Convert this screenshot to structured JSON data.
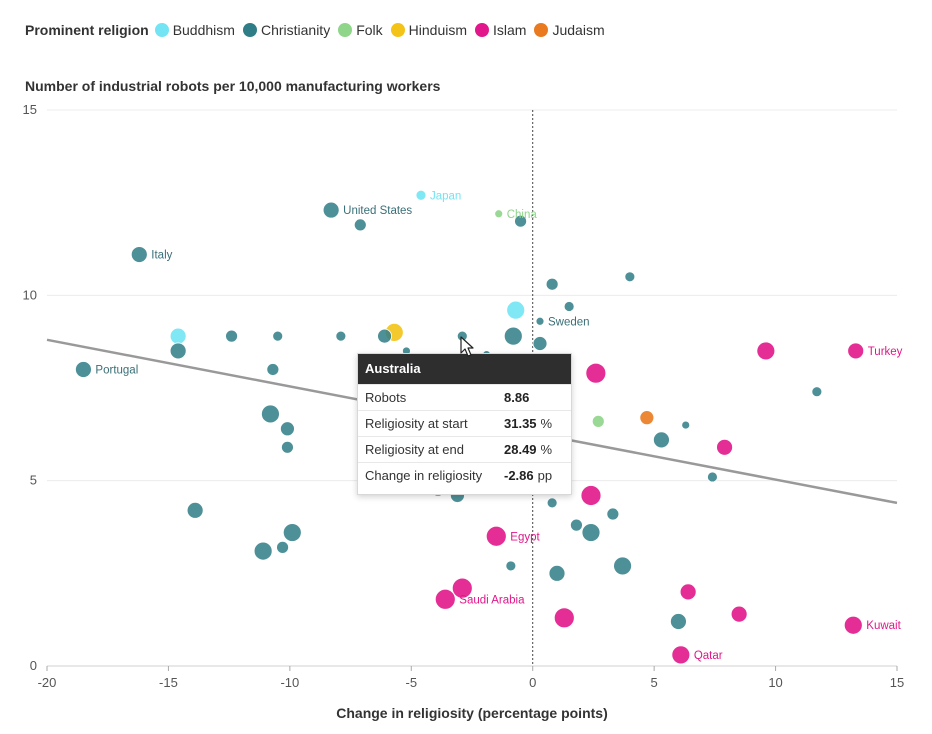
{
  "legend": {
    "title": "Prominent religion",
    "items": [
      {
        "label": "Buddhism",
        "color": "#72e4f4"
      },
      {
        "label": "Christianity",
        "color": "#2f7d86"
      },
      {
        "label": "Folk",
        "color": "#8fd58a"
      },
      {
        "label": "Hinduism",
        "color": "#f3c317"
      },
      {
        "label": "Islam",
        "color": "#e1178b"
      },
      {
        "label": "Judaism",
        "color": "#ea7a1f"
      }
    ]
  },
  "tooltip": {
    "title": "Australia",
    "rows": [
      {
        "label": "Robots",
        "value": "8.86",
        "unit": ""
      },
      {
        "label": "Religiosity at start",
        "value": "31.35",
        "unit": "%"
      },
      {
        "label": "Religiosity at end",
        "value": "28.49",
        "unit": "%"
      },
      {
        "label": "Change in religiosity",
        "value": "-2.86",
        "unit": "pp"
      }
    ]
  },
  "chart_data": {
    "type": "scatter",
    "title": "Number of industrial robots per 10,000 manufacturing workers",
    "xlabel": "Change in religiosity (percentage points)",
    "ylabel": "",
    "xlim": [
      -20,
      15
    ],
    "ylim": [
      0,
      15
    ],
    "xticks": [
      -20,
      -15,
      -10,
      -5,
      0,
      5,
      10,
      15
    ],
    "yticks": [
      0,
      5,
      10,
      15
    ],
    "grid": "horizontal",
    "zero_line": "dashed vertical at x=0",
    "trend_line": {
      "x": [
        -20,
        15
      ],
      "y": [
        8.8,
        4.4
      ]
    },
    "points": [
      {
        "x": -4.6,
        "y": 12.7,
        "r": 5,
        "religion": "Buddhism",
        "label": "Japan"
      },
      {
        "x": -0.7,
        "y": 9.6,
        "r": 9,
        "religion": "Buddhism"
      },
      {
        "x": -14.6,
        "y": 8.9,
        "r": 8,
        "religion": "Buddhism"
      },
      {
        "x": -1.4,
        "y": 12.2,
        "r": 4,
        "religion": "Folk",
        "label": "China"
      },
      {
        "x": 2.7,
        "y": 6.6,
        "r": 6,
        "religion": "Folk"
      },
      {
        "x": -5.7,
        "y": 9.0,
        "r": 9,
        "religion": "Hinduism"
      },
      {
        "x": 4.7,
        "y": 6.7,
        "r": 7,
        "religion": "Judaism"
      },
      {
        "x": -8.3,
        "y": 12.3,
        "r": 8,
        "religion": "Christianity",
        "label": "United States"
      },
      {
        "x": -7.1,
        "y": 11.9,
        "r": 6,
        "religion": "Christianity"
      },
      {
        "x": -0.5,
        "y": 12.0,
        "r": 6,
        "religion": "Christianity"
      },
      {
        "x": -16.2,
        "y": 11.1,
        "r": 8,
        "religion": "Christianity",
        "label": "Italy"
      },
      {
        "x": 0.8,
        "y": 10.3,
        "r": 6,
        "religion": "Christianity"
      },
      {
        "x": 4.0,
        "y": 10.5,
        "r": 5,
        "religion": "Christianity"
      },
      {
        "x": 1.5,
        "y": 9.7,
        "r": 5,
        "religion": "Christianity"
      },
      {
        "x": 0.3,
        "y": 9.3,
        "r": 4,
        "religion": "Christianity",
        "label": "Sweden"
      },
      {
        "x": -12.4,
        "y": 8.9,
        "r": 6,
        "religion": "Christianity"
      },
      {
        "x": -10.5,
        "y": 8.9,
        "r": 5,
        "religion": "Christianity"
      },
      {
        "x": -7.9,
        "y": 8.9,
        "r": 5,
        "religion": "Christianity"
      },
      {
        "x": -6.1,
        "y": 8.9,
        "r": 7,
        "religion": "Christianity"
      },
      {
        "x": -2.9,
        "y": 8.9,
        "r": 5,
        "religion": "Christianity"
      },
      {
        "x": -0.8,
        "y": 8.9,
        "r": 9,
        "religion": "Christianity"
      },
      {
        "x": 0.3,
        "y": 8.7,
        "r": 7,
        "religion": "Christianity"
      },
      {
        "x": -14.6,
        "y": 8.5,
        "r": 8,
        "religion": "Christianity"
      },
      {
        "x": -5.2,
        "y": 8.5,
        "r": 4,
        "religion": "Christianity"
      },
      {
        "x": -1.9,
        "y": 8.4,
        "r": 4,
        "religion": "Christianity"
      },
      {
        "x": -18.5,
        "y": 8.0,
        "r": 8,
        "religion": "Christianity",
        "label": "Portugal"
      },
      {
        "x": -10.7,
        "y": 8.0,
        "r": 6,
        "religion": "Christianity"
      },
      {
        "x": 11.7,
        "y": 7.4,
        "r": 5,
        "religion": "Christianity"
      },
      {
        "x": -10.8,
        "y": 6.8,
        "r": 9,
        "religion": "Christianity"
      },
      {
        "x": -10.1,
        "y": 6.4,
        "r": 7,
        "religion": "Christianity"
      },
      {
        "x": 6.3,
        "y": 6.5,
        "r": 4,
        "religion": "Christianity"
      },
      {
        "x": 5.3,
        "y": 6.1,
        "r": 8,
        "religion": "Christianity"
      },
      {
        "x": -10.1,
        "y": 5.9,
        "r": 6,
        "religion": "Christianity"
      },
      {
        "x": 7.4,
        "y": 5.1,
        "r": 5,
        "religion": "Christianity"
      },
      {
        "x": -3.1,
        "y": 4.6,
        "r": 7,
        "religion": "Christianity"
      },
      {
        "x": 0.8,
        "y": 4.4,
        "r": 5,
        "religion": "Christianity"
      },
      {
        "x": -13.9,
        "y": 4.2,
        "r": 8,
        "religion": "Christianity"
      },
      {
        "x": 3.3,
        "y": 4.1,
        "r": 6,
        "religion": "Christianity"
      },
      {
        "x": 1.8,
        "y": 3.8,
        "r": 6,
        "religion": "Christianity"
      },
      {
        "x": 2.4,
        "y": 3.6,
        "r": 9,
        "religion": "Christianity"
      },
      {
        "x": -9.9,
        "y": 3.6,
        "r": 9,
        "religion": "Christianity"
      },
      {
        "x": -10.3,
        "y": 3.2,
        "r": 6,
        "religion": "Christianity"
      },
      {
        "x": -11.1,
        "y": 3.1,
        "r": 9,
        "religion": "Christianity"
      },
      {
        "x": -0.9,
        "y": 2.7,
        "r": 5,
        "religion": "Christianity"
      },
      {
        "x": 3.7,
        "y": 2.7,
        "r": 9,
        "religion": "Christianity"
      },
      {
        "x": 1.0,
        "y": 2.5,
        "r": 8,
        "religion": "Christianity"
      },
      {
        "x": 6.0,
        "y": 1.2,
        "r": 8,
        "religion": "Christianity"
      },
      {
        "x": 13.3,
        "y": 8.5,
        "r": 8,
        "religion": "Islam",
        "label": "Turkey"
      },
      {
        "x": 9.6,
        "y": 8.5,
        "r": 9,
        "religion": "Islam"
      },
      {
        "x": 2.6,
        "y": 7.9,
        "r": 10,
        "religion": "Islam"
      },
      {
        "x": 7.9,
        "y": 5.9,
        "r": 8,
        "religion": "Islam"
      },
      {
        "x": -3.9,
        "y": 4.8,
        "r": 8,
        "religion": "Islam"
      },
      {
        "x": 2.4,
        "y": 4.6,
        "r": 10,
        "religion": "Islam"
      },
      {
        "x": -1.5,
        "y": 3.5,
        "r": 10,
        "religion": "Islam",
        "label": "Egypt"
      },
      {
        "x": -2.9,
        "y": 2.1,
        "r": 10,
        "religion": "Islam"
      },
      {
        "x": -3.6,
        "y": 1.8,
        "r": 10,
        "religion": "Islam",
        "label": "Saudi Arabia"
      },
      {
        "x": 6.4,
        "y": 2.0,
        "r": 8,
        "religion": "Islam"
      },
      {
        "x": 8.5,
        "y": 1.4,
        "r": 8,
        "religion": "Islam"
      },
      {
        "x": 1.3,
        "y": 1.3,
        "r": 10,
        "religion": "Islam"
      },
      {
        "x": 13.2,
        "y": 1.1,
        "r": 9,
        "religion": "Islam",
        "label": "Kuwait"
      },
      {
        "x": 6.1,
        "y": 0.3,
        "r": 9,
        "religion": "Islam",
        "label": "Qatar"
      }
    ]
  }
}
